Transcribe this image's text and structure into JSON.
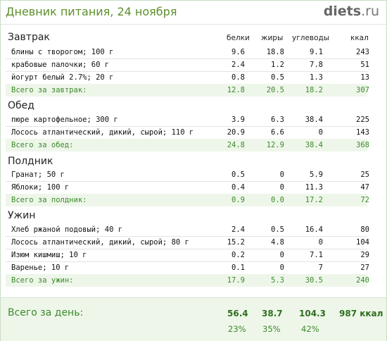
{
  "header": {
    "title": "Дневник питания, 24 ноября",
    "logo_main": "diets",
    "logo_suffix": ".ru"
  },
  "columns": {
    "protein": "белки",
    "fat": "жиры",
    "carbs": "углеводы",
    "kcal": "ккал"
  },
  "sections": [
    {
      "title": "Завтрак",
      "rows": [
        {
          "name": "блины с творогом; 100 г",
          "protein": "9.6",
          "fat": "18.8",
          "carbs": "9.1",
          "kcal": "243"
        },
        {
          "name": "крабовые палочки; 60 г",
          "protein": "2.4",
          "fat": "1.2",
          "carbs": "7.8",
          "kcal": "51"
        },
        {
          "name": "йогурт белый 2.7%; 20 г",
          "protein": "0.8",
          "fat": "0.5",
          "carbs": "1.3",
          "kcal": "13"
        }
      ],
      "total": {
        "name": "Всего за завтрак:",
        "protein": "12.8",
        "fat": "20.5",
        "carbs": "18.2",
        "kcal": "307"
      }
    },
    {
      "title": "Обед",
      "rows": [
        {
          "name": "пюре картофельное; 300 г",
          "protein": "3.9",
          "fat": "6.3",
          "carbs": "38.4",
          "kcal": "225"
        },
        {
          "name": "Лосось атлантический, дикий, сырой; 110 г",
          "protein": "20.9",
          "fat": "6.6",
          "carbs": "0",
          "kcal": "143"
        }
      ],
      "total": {
        "name": "Всего за обед:",
        "protein": "24.8",
        "fat": "12.9",
        "carbs": "38.4",
        "kcal": "368"
      }
    },
    {
      "title": "Полдник",
      "rows": [
        {
          "name": "Гранат; 50 г",
          "protein": "0.5",
          "fat": "0",
          "carbs": "5.9",
          "kcal": "25"
        },
        {
          "name": "Яблоки; 100 г",
          "protein": "0.4",
          "fat": "0",
          "carbs": "11.3",
          "kcal": "47"
        }
      ],
      "total": {
        "name": "Всего за полдник:",
        "protein": "0.9",
        "fat": "0.0",
        "carbs": "17.2",
        "kcal": "72"
      }
    },
    {
      "title": "Ужин",
      "rows": [
        {
          "name": "Хлеб ржаной подовый; 40 г",
          "protein": "2.4",
          "fat": "0.5",
          "carbs": "16.4",
          "kcal": "80"
        },
        {
          "name": "Лосось атлантический, дикий, сырой; 80 г",
          "protein": "15.2",
          "fat": "4.8",
          "carbs": "0",
          "kcal": "104"
        },
        {
          "name": "Изюм кишмиш; 10 г",
          "protein": "0.2",
          "fat": "0",
          "carbs": "7.1",
          "kcal": "29"
        },
        {
          "name": "Варенье; 10 г",
          "protein": "0.1",
          "fat": "0",
          "carbs": "7",
          "kcal": "27"
        }
      ],
      "total": {
        "name": "Всего за ужин:",
        "protein": "17.9",
        "fat": "5.3",
        "carbs": "30.5",
        "kcal": "240"
      }
    }
  ],
  "day_total": {
    "label": "Всего за день:",
    "protein": "56.4",
    "fat": "38.7",
    "carbs": "104.3",
    "kcal": "987 ккал",
    "protein_pct": "23%",
    "fat_pct": "35%",
    "carbs_pct": "42%"
  }
}
